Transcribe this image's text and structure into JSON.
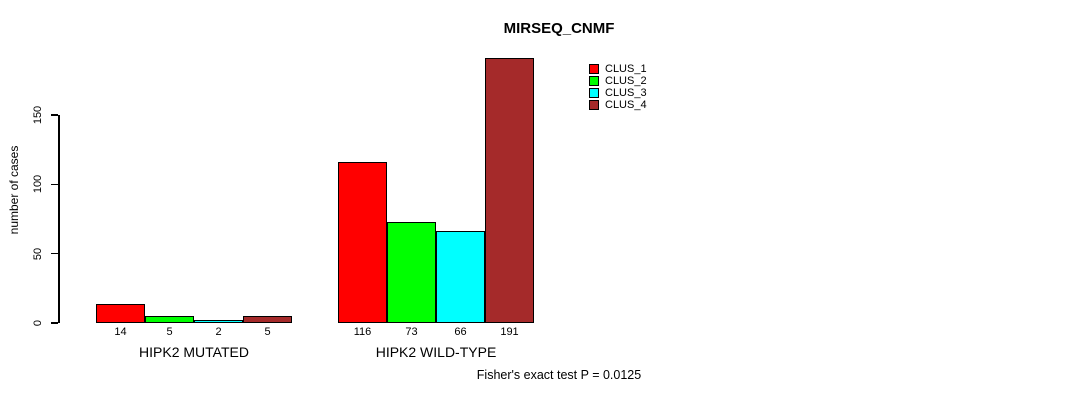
{
  "page": {
    "background": "#FFFFFF",
    "text_color": "#000000"
  },
  "chart_data": {
    "type": "bar",
    "title": "MIRSEQ_CNMF",
    "ylabel": "number of cases",
    "xlabel": "",
    "ylim": [
      0,
      200
    ],
    "ytick_values": [
      0,
      50,
      100,
      150
    ],
    "yticks": [
      "0",
      "50",
      "100",
      "150"
    ],
    "grid": false,
    "legend_position": "top-right",
    "categories": [
      "HIPK2 MUTATED",
      "HIPK2 WILD-TYPE"
    ],
    "series": [
      {
        "name": "CLUS_1",
        "color": "#FF0000",
        "values": [
          14,
          116
        ]
      },
      {
        "name": "CLUS_2",
        "color": "#00FF00",
        "values": [
          5,
          73
        ]
      },
      {
        "name": "CLUS_3",
        "color": "#00FFFF",
        "values": [
          2,
          66
        ]
      },
      {
        "name": "CLUS_4",
        "color": "#A52A2A",
        "values": [
          5,
          191
        ]
      }
    ],
    "bar_value_labels": [
      [
        "14",
        "5",
        "2",
        "5"
      ],
      [
        "116",
        "73",
        "66",
        "191"
      ]
    ],
    "annotation": "Fisher's exact test P = 0.0125"
  }
}
